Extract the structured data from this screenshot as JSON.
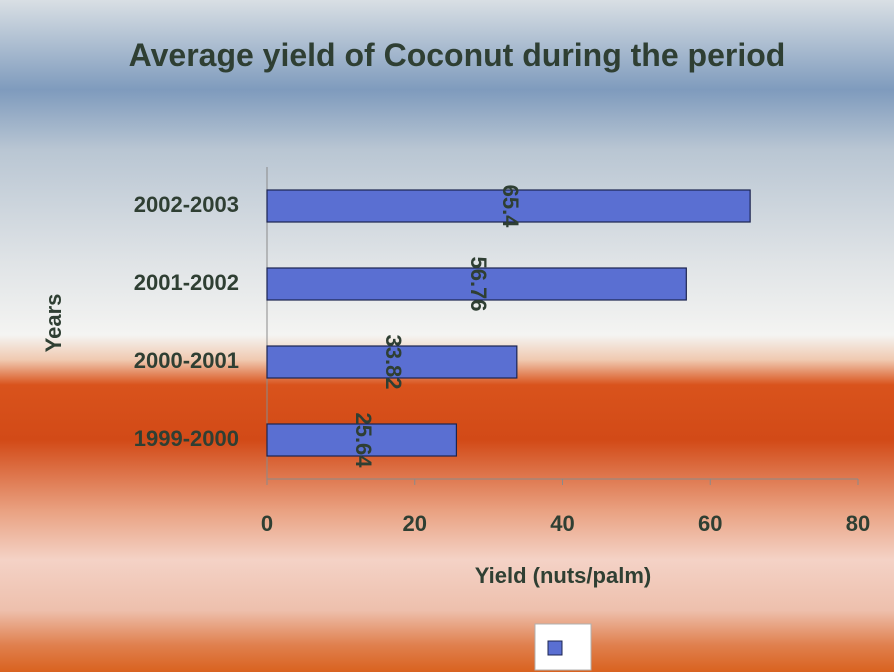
{
  "chart_data": {
    "type": "bar",
    "orientation": "horizontal",
    "title": "Average yield of Coconut during the period",
    "categories": [
      "2002-2003",
      "2001-2002",
      "2000-2001",
      "1999-2000"
    ],
    "values": [
      65.4,
      56.76,
      33.82,
      25.64
    ],
    "color": "#5a6fd2",
    "xlim": [
      0,
      80
    ],
    "xticks": [
      0,
      20,
      40,
      60,
      80
    ],
    "xlabel": "Yield (nuts/palm)",
    "ylabel": "Years",
    "legend": "bottom"
  }
}
